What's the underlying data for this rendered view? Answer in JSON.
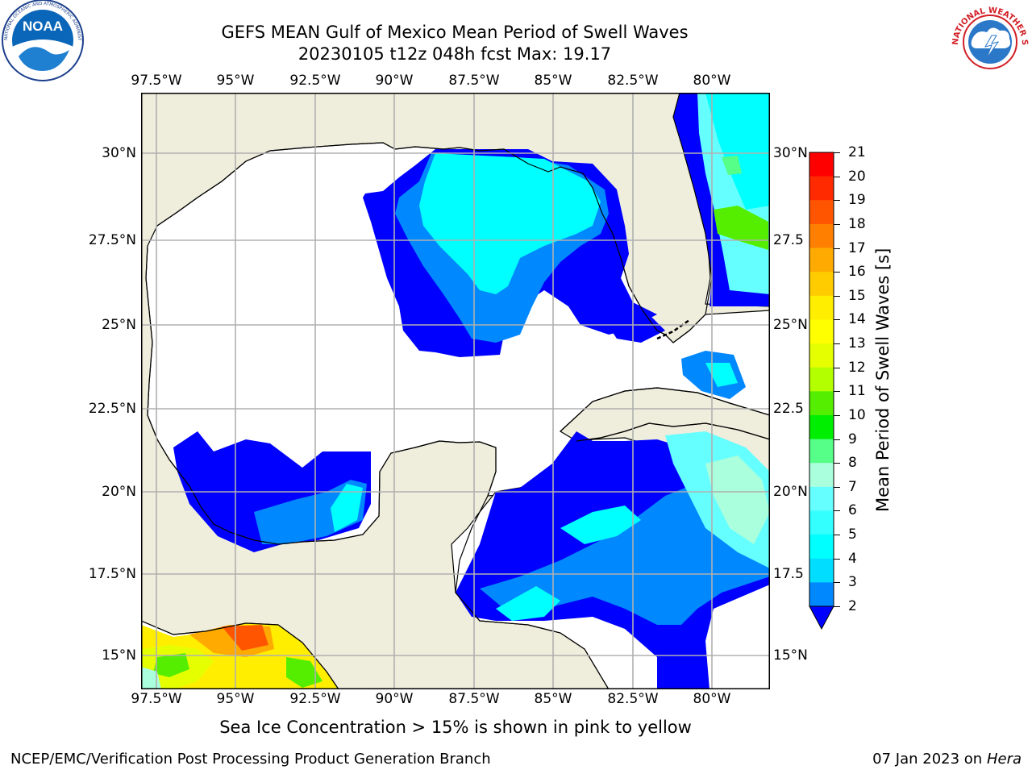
{
  "title": {
    "line1": "GEFS MEAN Gulf of Mexico Mean Period of Swell Waves",
    "line2": "20230105 t12z 048h fcst   Max: 19.17"
  },
  "logos": {
    "noaa_text": "NOAA",
    "noaa_ring_text": "NATIONAL OCEANIC AND ATMOSPHERIC ADMINISTRATION · U.S. DEPARTMENT OF COMMERCE",
    "nws_ring_text": "NATIONAL WEATHER SERVICE"
  },
  "map": {
    "lon_ticks": [
      "97.5°W",
      "95°W",
      "92.5°W",
      "90°W",
      "87.5°W",
      "85°W",
      "82.5°W",
      "80°W"
    ],
    "lat_ticks_left": [
      "30°N",
      "27.5°N",
      "25°N",
      "22.5°N",
      "20°N",
      "17.5°N",
      "15°N"
    ],
    "lat_ticks_right": [
      "30°N",
      "27.5",
      "25°N",
      "22.5",
      "20°N",
      "17.5",
      "15°N"
    ],
    "lon_range": [
      -98,
      -78.2
    ],
    "lat_range": [
      14,
      31.9
    ],
    "colors": {
      "land": "#efeddc",
      "ocean": "#ffffff",
      "grid": "#b0b0b0",
      "coast": "#000000"
    }
  },
  "colorbar": {
    "label": "Mean Period of Swell Waves [s]",
    "ticks": [
      "21",
      "20",
      "19",
      "18",
      "17",
      "16",
      "15",
      "14",
      "13",
      "12",
      "11",
      "10",
      "9",
      "8",
      "7",
      "6",
      "5",
      "4",
      "3",
      "2"
    ],
    "colors": [
      "#ff0000",
      "#ff2a00",
      "#ff5500",
      "#ff8000",
      "#ffaa00",
      "#ffcc00",
      "#ffee00",
      "#ffff00",
      "#e6ff00",
      "#b3ff00",
      "#55ee00",
      "#00ee00",
      "#55ff88",
      "#aaffdd",
      "#66ffff",
      "#33ffff",
      "#00ffff",
      "#00ddff",
      "#0088ff",
      "#0000ff"
    ]
  },
  "bottom_note": "Sea Ice Concentration > 15% is shown in pink to yellow",
  "footer": {
    "left": "NCEP/EMC/Verification Post Processing Product Generation Branch",
    "right_date": "07 Jan 2023 on ",
    "right_host": "Hera"
  }
}
